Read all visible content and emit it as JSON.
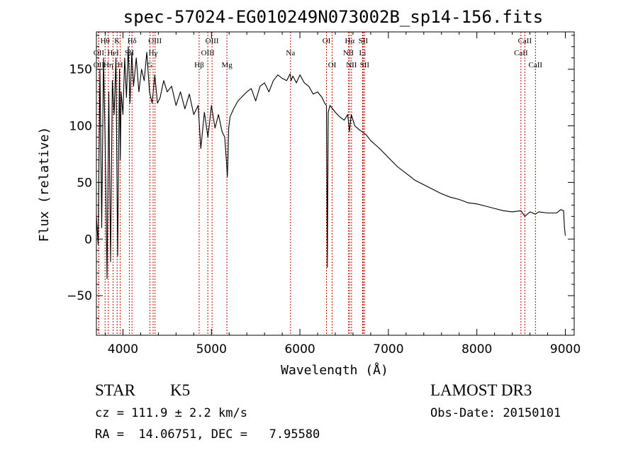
{
  "chart_data": {
    "type": "line",
    "title": "spec-57024-EG010249N073002B_sp14-156.fits",
    "xlabel": "Wavelength (Å)",
    "ylabel": "Flux (relative)",
    "xlim": [
      3700,
      9100
    ],
    "ylim": [
      -85,
      183
    ],
    "x_ticks": [
      4000,
      5000,
      6000,
      7000,
      8000,
      9000
    ],
    "x_tick_labels": [
      "4000",
      "5000",
      "6000",
      "7000",
      "8000",
      "9000"
    ],
    "y_ticks": [
      -50,
      0,
      50,
      100,
      150
    ],
    "y_tick_labels": [
      "−50",
      "0",
      "50",
      "100",
      "150"
    ],
    "grid": false,
    "series": [
      {
        "name": "flux",
        "x": [
          3700,
          3720,
          3740,
          3760,
          3780,
          3800,
          3820,
          3840,
          3860,
          3880,
          3900,
          3920,
          3940,
          3960,
          3970,
          3980,
          4000,
          4020,
          4040,
          4060,
          4080,
          4100,
          4120,
          4150,
          4180,
          4210,
          4240,
          4270,
          4300,
          4330,
          4360,
          4390,
          4420,
          4460,
          4500,
          4550,
          4600,
          4650,
          4700,
          4750,
          4800,
          4850,
          4880,
          4920,
          4960,
          5000,
          5040,
          5080,
          5120,
          5150,
          5170,
          5180,
          5185,
          5195,
          5210,
          5250,
          5300,
          5350,
          5400,
          5450,
          5500,
          5550,
          5600,
          5650,
          5700,
          5750,
          5800,
          5850,
          5890,
          5900,
          5920,
          5960,
          6000,
          6050,
          6100,
          6150,
          6200,
          6250,
          6280,
          6300,
          6310,
          6320,
          6340,
          6400,
          6450,
          6500,
          6540,
          6560,
          6570,
          6580,
          6620,
          6680,
          6750,
          6800,
          6900,
          7000,
          7100,
          7200,
          7300,
          7400,
          7500,
          7600,
          7700,
          7800,
          7900,
          8000,
          8100,
          8200,
          8300,
          8400,
          8498,
          8542,
          8600,
          8662,
          8700,
          8800,
          8900,
          8950,
          8980,
          8990,
          9000
        ],
        "y": [
          20,
          -5,
          150,
          10,
          160,
          80,
          -35,
          130,
          -20,
          140,
          110,
          160,
          -15,
          150,
          70,
          130,
          110,
          160,
          125,
          170,
          120,
          165,
          135,
          160,
          130,
          150,
          140,
          165,
          130,
          120,
          145,
          120,
          125,
          140,
          130,
          135,
          118,
          130,
          115,
          128,
          110,
          118,
          80,
          112,
          90,
          118,
          98,
          110,
          95,
          90,
          68,
          55,
          68,
          98,
          108,
          115,
          122,
          126,
          130,
          133,
          122,
          135,
          138,
          130,
          140,
          145,
          142,
          140,
          146,
          140,
          144,
          138,
          145,
          138,
          135,
          128,
          130,
          125,
          120,
          118,
          -25,
          112,
          118,
          112,
          108,
          105,
          110,
          95,
          102,
          110,
          100,
          96,
          92,
          87,
          80,
          72,
          64,
          58,
          52,
          48,
          44,
          40,
          37,
          35,
          32,
          31,
          29,
          27,
          25,
          24,
          25,
          20,
          24,
          22,
          24,
          23,
          23,
          26,
          25,
          10,
          3
        ]
      }
    ],
    "line_markers": [
      {
        "label": "OII",
        "x": 3727,
        "row": 2
      },
      {
        "label": "OII",
        "x": 3727,
        "row": 3
      },
      {
        "label": "Hθ",
        "x": 3798,
        "row": 1
      },
      {
        "label": "Hη",
        "x": 3835,
        "row": 3
      },
      {
        "label": "HeI",
        "x": 3889,
        "row": 2
      },
      {
        "label": "K",
        "x": 3934,
        "row": 1
      },
      {
        "label": "H",
        "x": 3969,
        "row": 3
      },
      {
        "label": "SII",
        "x": 4072,
        "row": 2
      },
      {
        "label": "Hδ",
        "x": 4102,
        "row": 1
      },
      {
        "label": "G",
        "x": 4305,
        "row": 3
      },
      {
        "label": "Hγ",
        "x": 4341,
        "row": 2
      },
      {
        "label": "OIII",
        "x": 4363,
        "row": 1
      },
      {
        "label": "Hβ",
        "x": 4861,
        "row": 3
      },
      {
        "label": "OIII",
        "x": 4959,
        "row": 2
      },
      {
        "label": "OIII",
        "x": 5007,
        "row": 1
      },
      {
        "label": "Mg",
        "x": 5175,
        "row": 3
      },
      {
        "label": "Na",
        "x": 5894,
        "row": 2
      },
      {
        "label": "OI",
        "x": 6300,
        "row": 1
      },
      {
        "label": "OI",
        "x": 6364,
        "row": 3
      },
      {
        "label": "NII",
        "x": 6548,
        "row": 2
      },
      {
        "label": "Hα",
        "x": 6563,
        "row": 1
      },
      {
        "label": "NII",
        "x": 6583,
        "row": 3
      },
      {
        "label": "Li",
        "x": 6708,
        "row": 2
      },
      {
        "label": "SII",
        "x": 6716,
        "row": 1
      },
      {
        "label": "SII",
        "x": 6731,
        "row": 3
      },
      {
        "label": "CaII",
        "x": 8498,
        "row": 2
      },
      {
        "label": "CaII",
        "x": 8542,
        "row": 1
      },
      {
        "label": "CaII",
        "x": 8662,
        "row": 3
      }
    ]
  },
  "info": {
    "object_type": "STAR",
    "object_class": "K5",
    "survey": "LAMOST DR3",
    "cz_text": "cz = 111.9 ± 2.2 km/s",
    "obs_date": "Obs-Date: 20150101",
    "radec_text": "RA =  14.06751, DEC =   7.95580"
  },
  "colors": {
    "axis": "#000000",
    "spectrum": "#000000",
    "marker": "#cc0000",
    "background": "#ffffff"
  }
}
